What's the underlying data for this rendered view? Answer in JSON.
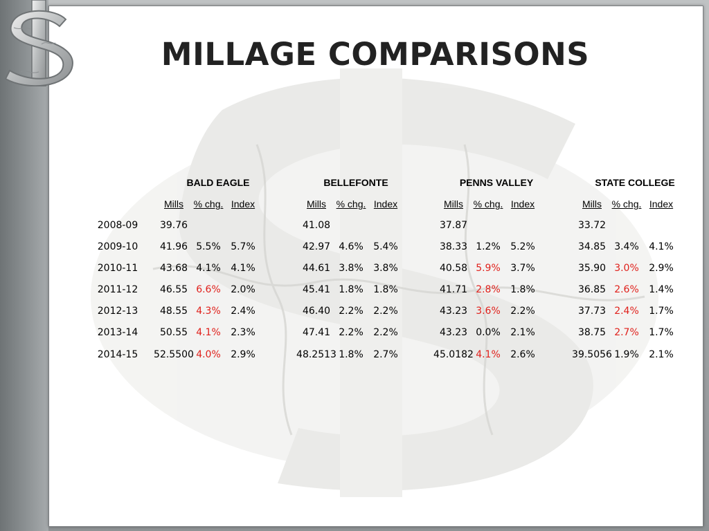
{
  "slide": {
    "title": "MILLAGE COMPARISONS",
    "accent_red": "#e0201b",
    "logo_icon": "dollar-sign-puzzle-icon"
  },
  "table": {
    "districts": [
      "BALD EAGLE",
      "BELLEFONTE",
      "PENNS VALLEY",
      "STATE COLLEGE"
    ],
    "column_headers": [
      "Mills",
      "% chg.",
      "Index"
    ],
    "rows": [
      {
        "year": "2008-09",
        "values": [
          {
            "mills": "39.76",
            "chg": "",
            "chg_red": false,
            "index": ""
          },
          {
            "mills": "41.08",
            "chg": "",
            "chg_red": false,
            "index": ""
          },
          {
            "mills": "37.87",
            "chg": "",
            "chg_red": false,
            "index": ""
          },
          {
            "mills": "33.72",
            "chg": "",
            "chg_red": false,
            "index": ""
          }
        ]
      },
      {
        "year": "2009-10",
        "values": [
          {
            "mills": "41.96",
            "chg": "5.5%",
            "chg_red": false,
            "index": "5.7%"
          },
          {
            "mills": "42.97",
            "chg": "4.6%",
            "chg_red": false,
            "index": "5.4%"
          },
          {
            "mills": "38.33",
            "chg": "1.2%",
            "chg_red": false,
            "index": "5.2%"
          },
          {
            "mills": "34.85",
            "chg": "3.4%",
            "chg_red": false,
            "index": "4.1%"
          }
        ]
      },
      {
        "year": "2010-11",
        "values": [
          {
            "mills": "43.68",
            "chg": "4.1%",
            "chg_red": false,
            "index": "4.1%"
          },
          {
            "mills": "44.61",
            "chg": "3.8%",
            "chg_red": false,
            "index": "3.8%"
          },
          {
            "mills": "40.58",
            "chg": "5.9%",
            "chg_red": true,
            "index": "3.7%"
          },
          {
            "mills": "35.90",
            "chg": "3.0%",
            "chg_red": true,
            "index": "2.9%"
          }
        ]
      },
      {
        "year": "2011-12",
        "values": [
          {
            "mills": "46.55",
            "chg": "6.6%",
            "chg_red": true,
            "index": "2.0%"
          },
          {
            "mills": "45.41",
            "chg": "1.8%",
            "chg_red": false,
            "index": "1.8%"
          },
          {
            "mills": "41.71",
            "chg": "2.8%",
            "chg_red": true,
            "index": "1.8%"
          },
          {
            "mills": "36.85",
            "chg": "2.6%",
            "chg_red": true,
            "index": "1.4%"
          }
        ]
      },
      {
        "year": "2012-13",
        "values": [
          {
            "mills": "48.55",
            "chg": "4.3%",
            "chg_red": true,
            "index": "2.4%"
          },
          {
            "mills": "46.40",
            "chg": "2.2%",
            "chg_red": false,
            "index": "2.2%"
          },
          {
            "mills": "43.23",
            "chg": "3.6%",
            "chg_red": true,
            "index": "2.2%"
          },
          {
            "mills": "37.73",
            "chg": "2.4%",
            "chg_red": true,
            "index": "1.7%"
          }
        ]
      },
      {
        "year": "2013-14",
        "values": [
          {
            "mills": "50.55",
            "chg": "4.1%",
            "chg_red": true,
            "index": "2.3%"
          },
          {
            "mills": "47.41",
            "chg": "2.2%",
            "chg_red": false,
            "index": "2.2%"
          },
          {
            "mills": "43.23",
            "chg": "0.0%",
            "chg_red": false,
            "index": "2.1%"
          },
          {
            "mills": "38.75",
            "chg": "2.7%",
            "chg_red": true,
            "index": "1.7%"
          }
        ]
      },
      {
        "year": "2014-15",
        "values": [
          {
            "mills": "52.5500",
            "chg": "4.0%",
            "chg_red": true,
            "index": "2.9%"
          },
          {
            "mills": "48.2513",
            "chg": "1.8%",
            "chg_red": false,
            "index": "2.7%"
          },
          {
            "mills": "45.0182",
            "chg": "4.1%",
            "chg_red": true,
            "index": "2.6%"
          },
          {
            "mills": "39.5056",
            "chg": "1.9%",
            "chg_red": false,
            "index": "2.1%"
          }
        ]
      }
    ]
  }
}
